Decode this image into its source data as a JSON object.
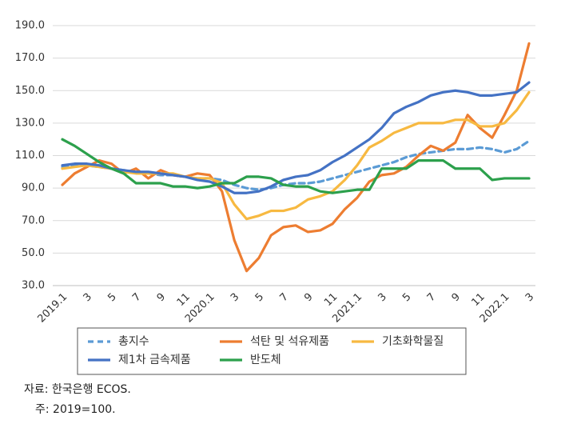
{
  "chart_data": {
    "type": "line",
    "categories": [
      "2019.1",
      null,
      "3",
      null,
      "5",
      null,
      "7",
      null,
      "9",
      null,
      "11",
      null,
      "2020.1",
      null,
      "3",
      null,
      "5",
      null,
      "7",
      null,
      "9",
      null,
      "11",
      null,
      "2021.1",
      null,
      "3",
      null,
      "5",
      null,
      "7",
      null,
      "9",
      null,
      "11",
      null,
      "2022.1",
      null,
      "3"
    ],
    "series": [
      {
        "name": "총지수",
        "color": "#5b9bd5",
        "dashed": true,
        "values": [
          103,
          104,
          104,
          103,
          102,
          101,
          100,
          99,
          98,
          98,
          97,
          96,
          96,
          95,
          92,
          90,
          89,
          90,
          92,
          93,
          93,
          94,
          96,
          98,
          100,
          102,
          104,
          106,
          109,
          111,
          112,
          113,
          114,
          114,
          115,
          114,
          112,
          114,
          119
        ]
      },
      {
        "name": "석탄 및 석유제품",
        "color": "#ed7d31",
        "dashed": false,
        "values": [
          92,
          99,
          103,
          107,
          105,
          99,
          102,
          96,
          101,
          98,
          97,
          99,
          98,
          88,
          58,
          39,
          47,
          61,
          66,
          67,
          63,
          64,
          68,
          77,
          84,
          94,
          98,
          99,
          103,
          110,
          116,
          113,
          118,
          135,
          127,
          121,
          135,
          150,
          179
        ]
      },
      {
        "name": "기초화학물질",
        "color": "#f7b941",
        "dashed": false,
        "values": [
          102,
          103,
          104,
          103,
          102,
          100,
          99,
          99,
          99,
          99,
          97,
          96,
          96,
          93,
          80,
          71,
          73,
          76,
          76,
          78,
          83,
          85,
          88,
          95,
          104,
          115,
          119,
          124,
          127,
          130,
          130,
          130,
          132,
          132,
          128,
          128,
          130,
          138,
          149
        ]
      },
      {
        "name": "제1차 금속제품",
        "color": "#4472c4",
        "dashed": false,
        "values": [
          104,
          105,
          105,
          104,
          102,
          101,
          100,
          100,
          99,
          98,
          97,
          95,
          94,
          91,
          87,
          87,
          88,
          91,
          95,
          97,
          98,
          101,
          106,
          110,
          115,
          120,
          127,
          136,
          140,
          143,
          147,
          149,
          150,
          149,
          147,
          147,
          148,
          149,
          155
        ]
      },
      {
        "name": "반도체",
        "color": "#2ca04c",
        "dashed": false,
        "values": [
          120,
          116,
          111,
          106,
          102,
          99,
          93,
          93,
          93,
          91,
          91,
          90,
          91,
          93,
          93,
          97,
          97,
          96,
          92,
          91,
          91,
          88,
          87,
          88,
          89,
          89,
          102,
          102,
          102,
          107,
          107,
          107,
          102,
          102,
          102,
          95,
          96,
          96,
          96
        ]
      }
    ],
    "ylim": [
      30,
      190
    ],
    "yticks": [
      {
        "value": 30,
        "label": "30.0"
      },
      {
        "value": 50,
        "label": "50.0"
      },
      {
        "value": 70,
        "label": "70.0"
      },
      {
        "value": 90,
        "label": "90.0"
      },
      {
        "value": 110,
        "label": "110.0"
      },
      {
        "value": 130,
        "label": "130.0"
      },
      {
        "value": 150,
        "label": "150.0"
      },
      {
        "value": 170,
        "label": "170.0"
      },
      {
        "value": 190,
        "label": "190.0"
      }
    ],
    "grid": true,
    "notes": [
      "자료: 한국은행 ECOS.",
      "주: 2019=100."
    ]
  }
}
